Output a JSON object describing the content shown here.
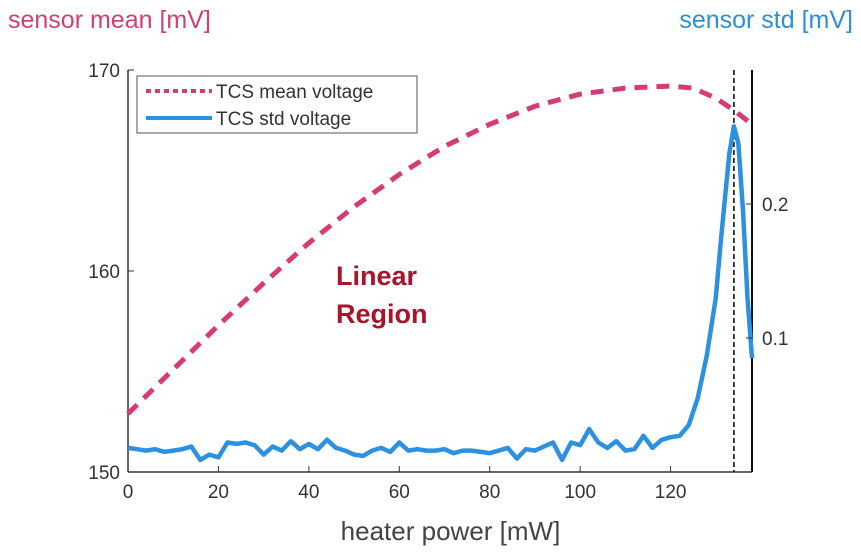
{
  "chart_data": {
    "type": "line",
    "xlabel": "heater power [mW]",
    "ylabel_left": "sensor mean [mV]",
    "ylabel_right": "sensor std [mV]",
    "xlim": [
      0,
      138
    ],
    "ylim_left": [
      150,
      170
    ],
    "ylim_right": [
      0.0,
      0.3
    ],
    "xticks": [
      "0",
      "20",
      "40",
      "60",
      "80",
      "100",
      "120"
    ],
    "yticks_left": [
      "150",
      "160",
      "170"
    ],
    "yticks_right": [
      "0.1",
      "0.2"
    ],
    "vline_x": 134,
    "annotation": {
      "lines": [
        "Linear",
        "Region"
      ],
      "color": "#a8142b"
    },
    "colors": {
      "mean": "#d63b72",
      "std": "#2b91e0"
    },
    "series": [
      {
        "name": "TCS mean voltage",
        "axis": "left",
        "style": "dotted",
        "x": [
          0,
          10,
          20,
          30,
          40,
          50,
          60,
          70,
          80,
          90,
          100,
          110,
          120,
          125,
          130,
          134,
          138
        ],
        "values": [
          152.9,
          155.1,
          157.3,
          159.4,
          161.4,
          163.2,
          164.8,
          166.2,
          167.3,
          168.2,
          168.8,
          169.1,
          169.2,
          169.1,
          168.6,
          168.0,
          167.3
        ]
      },
      {
        "name": "TCS std voltage",
        "axis": "right",
        "style": "solid",
        "x": [
          0,
          2,
          4,
          6,
          8,
          10,
          12,
          14,
          16,
          18,
          20,
          22,
          24,
          26,
          28,
          30,
          32,
          34,
          36,
          38,
          40,
          42,
          44,
          46,
          48,
          50,
          52,
          54,
          56,
          58,
          60,
          62,
          64,
          66,
          68,
          70,
          72,
          74,
          76,
          78,
          80,
          82,
          84,
          86,
          88,
          90,
          92,
          94,
          96,
          98,
          100,
          102,
          104,
          106,
          108,
          110,
          112,
          114,
          116,
          118,
          120,
          122,
          124,
          126,
          128,
          130,
          131,
          132,
          133,
          134,
          135,
          136,
          137,
          138
        ],
        "values": [
          0.018,
          0.017,
          0.016,
          0.017,
          0.015,
          0.016,
          0.017,
          0.019,
          0.009,
          0.013,
          0.011,
          0.022,
          0.021,
          0.022,
          0.02,
          0.013,
          0.019,
          0.016,
          0.023,
          0.017,
          0.021,
          0.017,
          0.024,
          0.018,
          0.016,
          0.013,
          0.012,
          0.016,
          0.018,
          0.015,
          0.022,
          0.016,
          0.017,
          0.016,
          0.016,
          0.017,
          0.014,
          0.016,
          0.016,
          0.015,
          0.014,
          0.016,
          0.018,
          0.01,
          0.017,
          0.016,
          0.019,
          0.022,
          0.009,
          0.022,
          0.02,
          0.032,
          0.022,
          0.018,
          0.023,
          0.016,
          0.017,
          0.027,
          0.018,
          0.024,
          0.026,
          0.027,
          0.035,
          0.055,
          0.087,
          0.13,
          0.168,
          0.204,
          0.238,
          0.258,
          0.245,
          0.195,
          0.13,
          0.085
        ]
      }
    ]
  }
}
